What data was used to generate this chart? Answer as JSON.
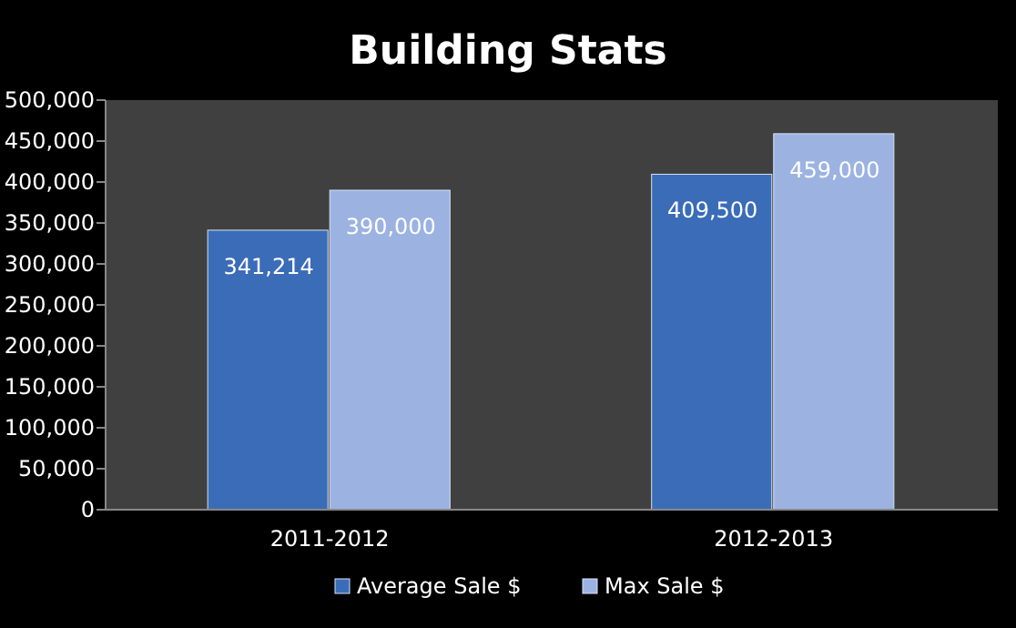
{
  "chart_data": {
    "type": "bar",
    "title": "Building Stats",
    "categories": [
      "2011-2012",
      "2012-2013"
    ],
    "series": [
      {
        "name": "Average Sale $",
        "color": "#3b6cb8",
        "values": [
          341214,
          409500
        ]
      },
      {
        "name": "Max Sale $",
        "color": "#9cb3e2",
        "values": [
          390000,
          459000
        ]
      }
    ],
    "ylim": [
      0,
      500000
    ],
    "yticks": [
      {
        "value": 0,
        "label": "0"
      },
      {
        "value": 50000,
        "label": "50,000"
      },
      {
        "value": 100000,
        "label": "100,000"
      },
      {
        "value": 150000,
        "label": "150,000"
      },
      {
        "value": 200000,
        "label": "200,000"
      },
      {
        "value": 250000,
        "label": "250,000"
      },
      {
        "value": 300000,
        "label": "300,000"
      },
      {
        "value": 350000,
        "label": "350,000"
      },
      {
        "value": 400000,
        "label": "400,000"
      },
      {
        "value": 450000,
        "label": "450,000"
      },
      {
        "value": 500000,
        "label": "500,000"
      }
    ],
    "value_labels": [
      [
        "341,214",
        "409,500"
      ],
      [
        "390,000",
        "459,000"
      ]
    ],
    "grid": false,
    "legend": "bottom"
  }
}
